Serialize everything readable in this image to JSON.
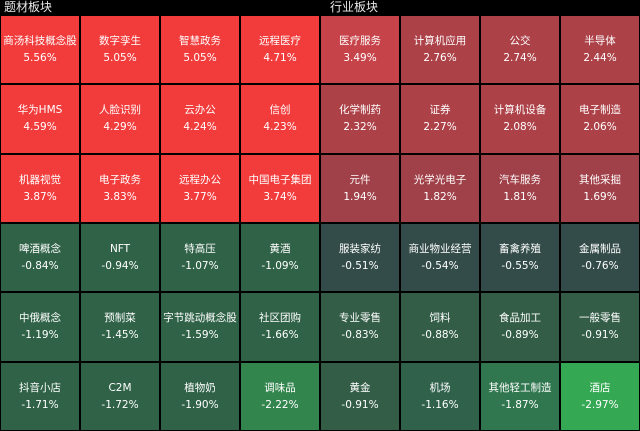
{
  "left": {
    "title": "题材板块",
    "items": [
      {
        "name": "商汤科技概念股",
        "pct": "5.56%",
        "color": "#f23c3c"
      },
      {
        "name": "数字孪生",
        "pct": "5.05%",
        "color": "#f23c3c"
      },
      {
        "name": "智慧政务",
        "pct": "5.05%",
        "color": "#f23c3c"
      },
      {
        "name": "远程医疗",
        "pct": "4.71%",
        "color": "#f23c3c"
      },
      {
        "name": "华为HMS",
        "pct": "4.59%",
        "color": "#f23c3c"
      },
      {
        "name": "人脸识别",
        "pct": "4.29%",
        "color": "#f23c3c"
      },
      {
        "name": "云办公",
        "pct": "4.24%",
        "color": "#f23c3c"
      },
      {
        "name": "信创",
        "pct": "4.23%",
        "color": "#f23c3c"
      },
      {
        "name": "机器视觉",
        "pct": "3.87%",
        "color": "#f23c3c"
      },
      {
        "name": "电子政务",
        "pct": "3.83%",
        "color": "#f23c3c"
      },
      {
        "name": "远程办公",
        "pct": "3.77%",
        "color": "#f23c3c"
      },
      {
        "name": "中国电子集团",
        "pct": "3.74%",
        "color": "#f23c3c"
      },
      {
        "name": "啤酒概念",
        "pct": "-0.84%",
        "color": "#2f6247"
      },
      {
        "name": "NFT",
        "pct": "-0.94%",
        "color": "#2f6247"
      },
      {
        "name": "特高压",
        "pct": "-1.07%",
        "color": "#2f6247"
      },
      {
        "name": "黄酒",
        "pct": "-1.09%",
        "color": "#2f6247"
      },
      {
        "name": "中俄概念",
        "pct": "-1.19%",
        "color": "#2f6247"
      },
      {
        "name": "预制菜",
        "pct": "-1.45%",
        "color": "#2f6247"
      },
      {
        "name": "字节跳动概念股",
        "pct": "-1.59%",
        "color": "#2f6247"
      },
      {
        "name": "社区团购",
        "pct": "-1.66%",
        "color": "#2f6247"
      },
      {
        "name": "抖音小店",
        "pct": "-1.71%",
        "color": "#2f6247"
      },
      {
        "name": "C2M",
        "pct": "-1.72%",
        "color": "#2f6247"
      },
      {
        "name": "植物奶",
        "pct": "-1.90%",
        "color": "#2f6247"
      },
      {
        "name": "调味品",
        "pct": "-2.22%",
        "color": "#33854e"
      }
    ]
  },
  "right": {
    "title": "行业板块",
    "items": [
      {
        "name": "医疗服务",
        "pct": "3.49%",
        "color": "#c7434a"
      },
      {
        "name": "计算机应用",
        "pct": "2.76%",
        "color": "#ac4148"
      },
      {
        "name": "公交",
        "pct": "2.74%",
        "color": "#ac4148"
      },
      {
        "name": "半导体",
        "pct": "2.44%",
        "color": "#ac4148"
      },
      {
        "name": "化学制药",
        "pct": "2.32%",
        "color": "#ac4148"
      },
      {
        "name": "证券",
        "pct": "2.27%",
        "color": "#ac4148"
      },
      {
        "name": "计算机设备",
        "pct": "2.08%",
        "color": "#ac4148"
      },
      {
        "name": "电子制造",
        "pct": "2.06%",
        "color": "#ac4148"
      },
      {
        "name": "元件",
        "pct": "1.94%",
        "color": "#a04048"
      },
      {
        "name": "光学光电子",
        "pct": "1.82%",
        "color": "#a04048"
      },
      {
        "name": "汽车服务",
        "pct": "1.81%",
        "color": "#a04048"
      },
      {
        "name": "其他采掘",
        "pct": "1.69%",
        "color": "#a04048"
      },
      {
        "name": "服装家纺",
        "pct": "-0.51%",
        "color": "#334c4a"
      },
      {
        "name": "商业物业经营",
        "pct": "-0.54%",
        "color": "#334c4a"
      },
      {
        "name": "畜禽养殖",
        "pct": "-0.55%",
        "color": "#334c4a"
      },
      {
        "name": "金属制品",
        "pct": "-0.76%",
        "color": "#334c4a"
      },
      {
        "name": "专业零售",
        "pct": "-0.83%",
        "color": "#335d47"
      },
      {
        "name": "饲料",
        "pct": "-0.88%",
        "color": "#335d47"
      },
      {
        "name": "食品加工",
        "pct": "-0.89%",
        "color": "#335d47"
      },
      {
        "name": "一般零售",
        "pct": "-0.91%",
        "color": "#335d47"
      },
      {
        "name": "黄金",
        "pct": "-0.91%",
        "color": "#335d47"
      },
      {
        "name": "机场",
        "pct": "-1.16%",
        "color": "#30614b"
      },
      {
        "name": "其他轻工制造",
        "pct": "-1.87%",
        "color": "#30774f"
      },
      {
        "name": "酒店",
        "pct": "-2.97%",
        "color": "#35a853"
      }
    ]
  }
}
